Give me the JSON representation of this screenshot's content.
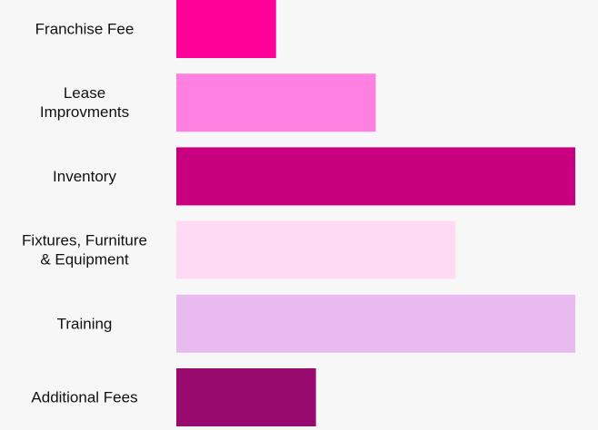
{
  "chart_data": {
    "type": "bar",
    "orientation": "horizontal",
    "categories": [
      [
        "Franchise Fee"
      ],
      [
        "Lease",
        "Improvments"
      ],
      [
        "Inventory"
      ],
      [
        "Fixtures, Furniture",
        "& Equipment"
      ],
      [
        "Training"
      ],
      [
        "Additional Fees"
      ]
    ],
    "values": [
      25,
      50,
      100,
      70,
      100,
      35
    ],
    "xlim": [
      0,
      100
    ],
    "grid": false,
    "legend": "none",
    "title": "",
    "xlabel": "",
    "ylabel": "",
    "colors": [
      "#ff0099",
      "#ff80e0",
      "#c8007f",
      "#ffdaf2",
      "#e8baf0",
      "#990a6e"
    ]
  }
}
